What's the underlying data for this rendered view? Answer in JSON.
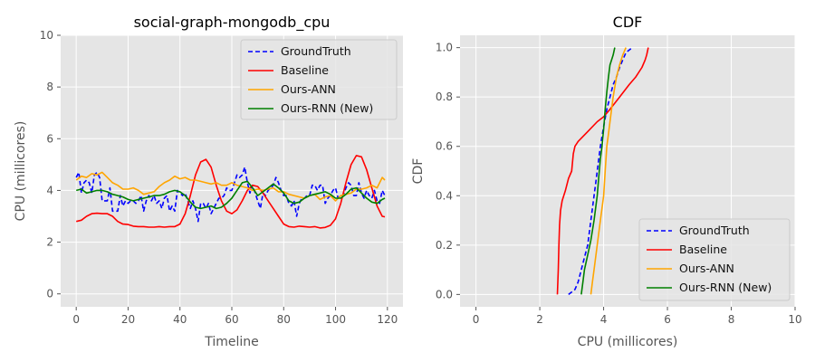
{
  "colors": {
    "plot_background": "#e5e5e5",
    "grid": "#ffffff",
    "tick_text": "#555555",
    "label_text": "#555555",
    "title_text": "#000000",
    "GroundTruth": "#0000ff",
    "Baseline": "#ff0000",
    "Ours-ANN": "#ffa500",
    "Ours-RNN (New)": "#008000"
  },
  "chart_data": [
    {
      "type": "line",
      "title": "social-graph-mongodb_cpu",
      "xlabel": "Timeline",
      "ylabel": "CPU (millicores)",
      "xlim": [
        -6,
        126
      ],
      "ylim": [
        -0.5,
        10
      ],
      "xticks": [
        0,
        20,
        40,
        60,
        80,
        100,
        120
      ],
      "yticks": [
        0,
        2,
        4,
        6,
        8,
        10
      ],
      "grid": true,
      "legend": "top-right",
      "series": [
        {
          "name": "GroundTruth",
          "style": "dashed",
          "x": [
            0,
            1,
            2,
            3,
            4,
            5,
            6,
            7,
            8,
            9,
            10,
            11,
            12,
            13,
            14,
            15,
            16,
            17,
            18,
            19,
            20,
            21,
            22,
            23,
            24,
            25,
            26,
            27,
            28,
            29,
            30,
            31,
            32,
            33,
            34,
            35,
            36,
            37,
            38,
            39,
            40,
            41,
            42,
            43,
            44,
            45,
            46,
            47,
            48,
            49,
            50,
            51,
            52,
            53,
            54,
            55,
            56,
            57,
            58,
            59,
            60,
            61,
            62,
            63,
            64,
            65,
            66,
            67,
            68,
            69,
            70,
            71,
            72,
            73,
            74,
            75,
            76,
            77,
            78,
            79,
            80,
            81,
            82,
            83,
            84,
            85,
            86,
            87,
            88,
            89,
            90,
            91,
            92,
            93,
            94,
            95,
            96,
            97,
            98,
            99,
            100,
            101,
            102,
            103,
            104,
            105,
            106,
            107,
            108,
            109,
            110,
            111,
            112,
            113,
            114,
            115,
            116,
            117,
            118,
            119
          ],
          "y": [
            4.5,
            4.7,
            3.9,
            4.3,
            4.4,
            4.3,
            3.9,
            4.6,
            4.7,
            4.5,
            3.6,
            3.6,
            3.6,
            4.1,
            3.2,
            3.2,
            3.2,
            3.8,
            3.4,
            3.6,
            3.5,
            3.6,
            3.6,
            3.5,
            3.6,
            3.8,
            3.2,
            3.6,
            3.8,
            3.6,
            3.8,
            3.5,
            3.6,
            3.3,
            3.7,
            3.8,
            3.2,
            3.4,
            3.2,
            4.0,
            3.9,
            3.8,
            3.9,
            3.6,
            3.3,
            3.6,
            3.3,
            2.8,
            3.5,
            3.5,
            3.3,
            3.5,
            3.1,
            3.3,
            3.5,
            3.7,
            3.7,
            3.8,
            4.1,
            4.0,
            4.0,
            4.3,
            4.6,
            4.5,
            4.6,
            4.9,
            4.3,
            3.9,
            4.2,
            3.9,
            3.6,
            3.3,
            3.9,
            3.8,
            4.0,
            4.1,
            4.2,
            4.5,
            4.3,
            4.0,
            3.8,
            3.8,
            3.5,
            3.4,
            3.6,
            3.0,
            3.5,
            3.7,
            3.7,
            3.8,
            3.8,
            4.2,
            4.2,
            4.0,
            4.2,
            4.2,
            3.5,
            3.7,
            3.8,
            4.0,
            4.1,
            3.7,
            3.8,
            3.8,
            4.1,
            4.3,
            4.2,
            3.8,
            3.8,
            4.3,
            3.9,
            3.7,
            4.0,
            3.8,
            3.7,
            4.0,
            3.6,
            3.5,
            4.0,
            3.8
          ]
        },
        {
          "name": "Baseline",
          "style": "solid",
          "x": [
            0,
            2,
            4,
            6,
            8,
            10,
            12,
            14,
            16,
            18,
            20,
            22,
            24,
            26,
            28,
            30,
            32,
            34,
            36,
            38,
            40,
            42,
            44,
            46,
            48,
            50,
            52,
            54,
            56,
            58,
            60,
            62,
            64,
            66,
            68,
            70,
            72,
            74,
            76,
            78,
            80,
            82,
            84,
            86,
            88,
            90,
            92,
            94,
            96,
            98,
            100,
            102,
            104,
            106,
            108,
            110,
            112,
            114,
            116,
            118,
            119
          ],
          "y": [
            2.8,
            2.85,
            3.0,
            3.1,
            3.12,
            3.1,
            3.1,
            3.0,
            2.8,
            2.7,
            2.68,
            2.62,
            2.6,
            2.6,
            2.58,
            2.58,
            2.6,
            2.58,
            2.6,
            2.6,
            2.7,
            3.1,
            3.8,
            4.6,
            5.1,
            5.2,
            4.9,
            4.2,
            3.6,
            3.2,
            3.1,
            3.25,
            3.6,
            4.0,
            4.2,
            4.15,
            3.9,
            3.6,
            3.3,
            3.0,
            2.7,
            2.6,
            2.58,
            2.62,
            2.6,
            2.58,
            2.6,
            2.55,
            2.57,
            2.65,
            2.9,
            3.5,
            4.3,
            5.0,
            5.35,
            5.3,
            4.8,
            4.1,
            3.4,
            3.0,
            2.98
          ]
        },
        {
          "name": "Ours-ANN",
          "style": "solid",
          "x": [
            0,
            2,
            4,
            6,
            8,
            10,
            12,
            14,
            16,
            18,
            20,
            22,
            24,
            26,
            28,
            30,
            32,
            34,
            36,
            38,
            40,
            42,
            44,
            46,
            48,
            50,
            52,
            54,
            56,
            58,
            60,
            62,
            64,
            66,
            68,
            70,
            72,
            74,
            76,
            78,
            80,
            82,
            84,
            86,
            88,
            90,
            92,
            94,
            96,
            98,
            100,
            102,
            104,
            106,
            108,
            110,
            112,
            114,
            116,
            118,
            119
          ],
          "y": [
            4.4,
            4.55,
            4.5,
            4.65,
            4.6,
            4.7,
            4.5,
            4.3,
            4.2,
            4.05,
            4.05,
            4.1,
            4.0,
            3.85,
            3.9,
            3.95,
            4.15,
            4.3,
            4.4,
            4.55,
            4.45,
            4.5,
            4.4,
            4.4,
            4.35,
            4.3,
            4.25,
            4.3,
            4.2,
            4.2,
            4.3,
            4.2,
            4.15,
            4.1,
            4.0,
            4.05,
            4.0,
            4.05,
            4.1,
            3.95,
            3.95,
            3.85,
            3.8,
            3.75,
            3.7,
            3.8,
            3.85,
            3.65,
            3.75,
            3.8,
            3.6,
            3.8,
            3.85,
            3.9,
            4.05,
            4.05,
            4.1,
            4.2,
            4.1,
            4.5,
            4.4
          ]
        },
        {
          "name": "Ours-RNN (New)",
          "style": "solid",
          "x": [
            0,
            2,
            4,
            6,
            8,
            10,
            12,
            14,
            16,
            18,
            20,
            22,
            24,
            26,
            28,
            30,
            32,
            34,
            36,
            38,
            40,
            42,
            44,
            46,
            48,
            50,
            52,
            54,
            56,
            58,
            60,
            62,
            64,
            66,
            68,
            70,
            72,
            74,
            76,
            78,
            80,
            82,
            84,
            86,
            88,
            90,
            92,
            94,
            96,
            98,
            100,
            102,
            104,
            106,
            108,
            110,
            112,
            114,
            116,
            118,
            119
          ],
          "y": [
            4.0,
            4.05,
            3.9,
            3.95,
            4.0,
            4.0,
            3.95,
            3.85,
            3.8,
            3.75,
            3.65,
            3.6,
            3.65,
            3.7,
            3.75,
            3.8,
            3.8,
            3.85,
            3.95,
            4.0,
            3.95,
            3.8,
            3.55,
            3.35,
            3.3,
            3.35,
            3.4,
            3.3,
            3.35,
            3.5,
            3.7,
            4.0,
            4.3,
            4.35,
            4.1,
            3.8,
            3.95,
            4.1,
            4.25,
            4.1,
            3.9,
            3.6,
            3.5,
            3.55,
            3.7,
            3.8,
            3.85,
            3.9,
            3.95,
            3.85,
            3.7,
            3.7,
            3.85,
            4.05,
            4.1,
            3.9,
            3.7,
            3.55,
            3.5,
            3.65,
            3.7
          ]
        }
      ]
    },
    {
      "type": "line",
      "title": "CDF",
      "xlabel": "CPU (millicores)",
      "ylabel": "CDF",
      "xlim": [
        -0.5,
        10
      ],
      "ylim": [
        -0.05,
        1.05
      ],
      "xticks": [
        0,
        2,
        4,
        6,
        8,
        10
      ],
      "yticks": [
        0.0,
        0.2,
        0.4,
        0.6,
        0.8,
        1.0
      ],
      "grid": true,
      "legend": "bottom-right",
      "series": [
        {
          "name": "GroundTruth",
          "style": "dashed",
          "x": [
            2.9,
            3.1,
            3.2,
            3.3,
            3.4,
            3.5,
            3.6,
            3.7,
            3.75,
            3.8,
            3.9,
            4.0,
            4.1,
            4.2,
            4.3,
            4.4,
            4.5,
            4.6,
            4.7,
            4.9
          ],
          "y": [
            0.0,
            0.02,
            0.05,
            0.1,
            0.15,
            0.2,
            0.3,
            0.4,
            0.45,
            0.5,
            0.6,
            0.68,
            0.75,
            0.8,
            0.85,
            0.88,
            0.92,
            0.95,
            0.98,
            1.0
          ]
        },
        {
          "name": "Baseline",
          "style": "solid",
          "x": [
            2.55,
            2.58,
            2.6,
            2.62,
            2.65,
            2.7,
            2.8,
            2.9,
            3.0,
            3.05,
            3.1,
            3.2,
            3.5,
            3.8,
            4.0,
            4.2,
            4.5,
            4.8,
            5.0,
            5.2,
            5.3,
            5.35,
            5.4
          ],
          "y": [
            0.0,
            0.1,
            0.2,
            0.28,
            0.34,
            0.38,
            0.42,
            0.47,
            0.5,
            0.57,
            0.6,
            0.62,
            0.66,
            0.7,
            0.72,
            0.75,
            0.8,
            0.85,
            0.88,
            0.92,
            0.95,
            0.97,
            1.0
          ]
        },
        {
          "name": "Ours-ANN",
          "style": "solid",
          "x": [
            3.6,
            3.65,
            3.7,
            3.8,
            3.9,
            4.0,
            4.05,
            4.1,
            4.15,
            4.2,
            4.3,
            4.4,
            4.5,
            4.6,
            4.7
          ],
          "y": [
            0.0,
            0.05,
            0.1,
            0.2,
            0.3,
            0.4,
            0.5,
            0.6,
            0.65,
            0.7,
            0.8,
            0.88,
            0.93,
            0.97,
            1.0
          ]
        },
        {
          "name": "Ours-RNN (New)",
          "style": "solid",
          "x": [
            3.3,
            3.35,
            3.4,
            3.5,
            3.6,
            3.7,
            3.8,
            3.85,
            3.9,
            3.95,
            4.0,
            4.05,
            4.1,
            4.15,
            4.2,
            4.3,
            4.35
          ],
          "y": [
            0.0,
            0.05,
            0.1,
            0.16,
            0.22,
            0.3,
            0.4,
            0.48,
            0.55,
            0.6,
            0.67,
            0.75,
            0.82,
            0.88,
            0.93,
            0.97,
            1.0
          ]
        }
      ]
    }
  ]
}
